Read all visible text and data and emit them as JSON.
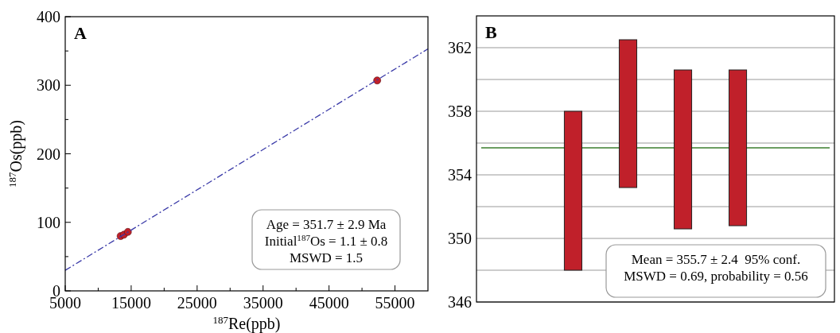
{
  "chart_data": [
    {
      "type": "scatter",
      "title": "A",
      "xlabel": "$^{187}$Re(ppb)",
      "ylabel": "$^{187}$Os(ppb)",
      "xlim": [
        5000,
        60000
      ],
      "xticks": [
        5000,
        {
          "value": 10000,
          "label": null
        },
        15000,
        {
          "value": 20000,
          "label": null
        },
        25000,
        {
          "value": 30000,
          "label": null
        },
        35000,
        {
          "value": 40000,
          "label": null
        },
        45000,
        {
          "value": 50000,
          "label": null
        },
        55000
      ],
      "ylim": [
        0,
        400
      ],
      "yticks": [
        0,
        {
          "value": 50,
          "label": null
        },
        100,
        {
          "value": 150,
          "label": null
        },
        200,
        {
          "value": 250,
          "label": null
        },
        300,
        {
          "value": 350,
          "label": null
        },
        400
      ],
      "series": [
        {
          "marker": "circle",
          "color": "#c0202a",
          "x": [
            13400,
            13900,
            14500,
            52300
          ],
          "values": [
            80,
            82,
            86,
            307
          ]
        },
        {
          "type": "line",
          "color": "#3a3aa8",
          "line_style": "dashed",
          "x": [
            5000,
            60000
          ],
          "values": [
            30,
            353
          ]
        }
      ],
      "annotations": [
        "Age = 351.7 ± 2.9 Ma",
        "Initial$^{187}$Os = 1.1 ± 0.8",
        "MSWD = 1.5"
      ]
    },
    {
      "type": "bar",
      "title": "B",
      "categories": [
        null,
        null,
        null,
        null
      ],
      "values": [
        10,
        9.3,
        10,
        9.8
      ],
      "base": [
        348,
        353.2,
        350.6,
        350.8
      ],
      "color": "#c0202a",
      "ylim": [
        346,
        364
      ],
      "yticks": [
        346,
        {
          "value": 348,
          "label": null
        },
        350,
        {
          "value": 352,
          "label": null
        },
        354,
        {
          "value": 356,
          "label": null
        },
        358,
        {
          "value": 360,
          "label": null
        },
        362
      ],
      "grid": "y",
      "ref_lines": [
        {
          "axis": "y",
          "value": 355.7,
          "color": "#3a7d2c"
        }
      ],
      "annotations": [
        "Mean = 355.7 ± 2.4  95% conf.",
        "MSWD = 0.69, probability = 0.56"
      ]
    }
  ]
}
